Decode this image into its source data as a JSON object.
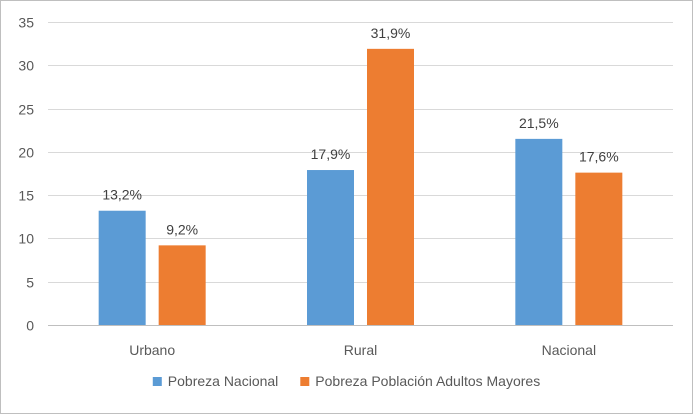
{
  "chart_data": {
    "type": "bar",
    "title": "",
    "xlabel": "",
    "ylabel": "",
    "categories": [
      "Urbano",
      "Rural",
      "Nacional"
    ],
    "series": [
      {
        "name": "Pobreza Nacional",
        "values": [
          13.2,
          17.9,
          21.5
        ],
        "labels": [
          "13,2%",
          "17,9%",
          "21,5%"
        ],
        "color": "#5b9bd5"
      },
      {
        "name": "Pobreza Población Adultos Mayores",
        "values": [
          9.2,
          31.9,
          17.6
        ],
        "labels": [
          "9,2%",
          "31,9%",
          "17,6%"
        ],
        "color": "#ed7d31"
      }
    ],
    "ylim": [
      0,
      35
    ],
    "yticks": [
      0,
      5,
      10,
      15,
      20,
      25,
      30,
      35
    ],
    "grid": true,
    "legend_position": "bottom"
  }
}
